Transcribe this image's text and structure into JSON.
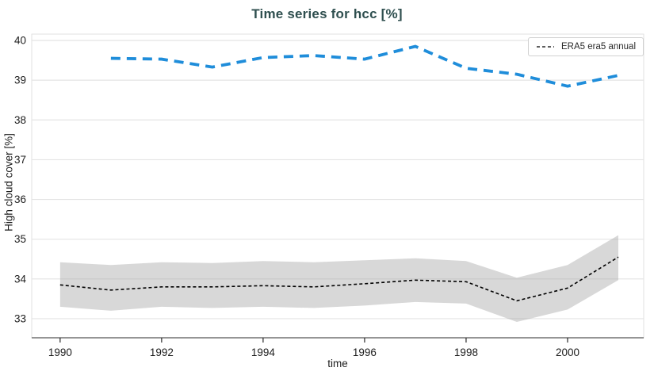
{
  "chart_data": {
    "type": "line",
    "title": "Time series for hcc [%]",
    "xlabel": "time",
    "ylabel": "High cloud cover [%]",
    "x_range": [
      1989.44,
      2001.5
    ],
    "y_range": [
      32.52,
      40.16
    ],
    "x_ticks": [
      1990,
      1992,
      1994,
      1996,
      1998,
      2000
    ],
    "y_ticks": [
      33,
      34,
      35,
      36,
      37,
      38,
      39,
      40
    ],
    "grid": true,
    "legend": {
      "position": "top-right",
      "label": "ERA5 era5 annual"
    },
    "series": [
      {
        "name": "ERA5 era5 annual",
        "kind": "line_with_band",
        "color": "#000000",
        "dash": [
          4,
          3
        ],
        "width": 1.6,
        "x": [
          1990,
          1991,
          1992,
          1993,
          1994,
          1995,
          1996,
          1997,
          1998,
          1999,
          2000,
          2001
        ],
        "y": [
          33.85,
          33.72,
          33.8,
          33.8,
          33.83,
          33.8,
          33.88,
          33.97,
          33.93,
          33.45,
          33.77,
          34.55
        ],
        "band_upper": [
          34.42,
          34.35,
          34.42,
          34.4,
          34.45,
          34.42,
          34.47,
          34.52,
          34.45,
          34.03,
          34.35,
          35.1
        ],
        "band_lower": [
          33.3,
          33.2,
          33.3,
          33.27,
          33.3,
          33.27,
          33.33,
          33.42,
          33.38,
          32.92,
          33.23,
          33.97
        ],
        "band_color": "#a9a9a9",
        "band_opacity": 0.45
      },
      {
        "name": "",
        "kind": "line",
        "color": "#1f8dda",
        "dash": [
          12,
          8
        ],
        "width": 3.8,
        "x": [
          1991,
          1992,
          1993,
          1994,
          1995,
          1996,
          1997,
          1998,
          1999,
          2000,
          2001
        ],
        "y": [
          39.55,
          39.53,
          39.33,
          39.57,
          39.62,
          39.53,
          39.85,
          39.3,
          39.15,
          38.85,
          39.12
        ]
      }
    ],
    "colors": {
      "title": "#2f4f4f",
      "grid": "#e4e4e4",
      "plot_border": "#e2e2e2",
      "axis_line": "#565656",
      "tick_mark": "#2a2a2a",
      "tick_label": "#1c1c1c"
    }
  }
}
